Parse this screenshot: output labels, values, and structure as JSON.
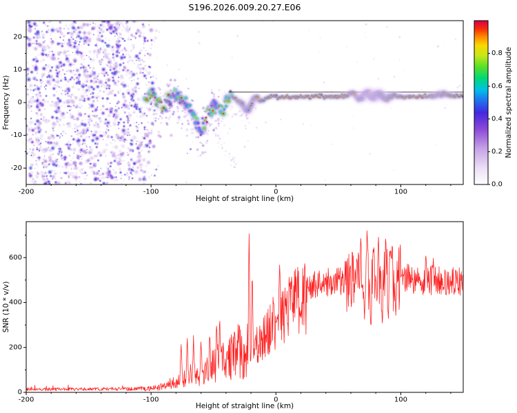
{
  "title": "S196.2026.009.20.27.E06",
  "chart_data": [
    {
      "type": "heatmap",
      "name": "doppler-spectrogram",
      "title": "S196.2026.009.20.27.E06",
      "xlabel": "Height of straight line (km)",
      "ylabel": "Frequency (Hz)",
      "xlim": [
        -200,
        150
      ],
      "ylim": [
        -25,
        25
      ],
      "xticks": [
        -200,
        -100,
        0,
        100
      ],
      "xtick_labels": [
        "-200",
        "-100",
        "0",
        "100"
      ],
      "xtick_minor_step": 20,
      "yticks": [
        -20,
        -10,
        0,
        10,
        20
      ],
      "ytick_labels": [
        "-20",
        "-10",
        "0",
        "10",
        "20"
      ],
      "ytick_minor_step": 5,
      "colorbar": {
        "label": "Normalized spectral amplitude",
        "range": [
          0,
          1
        ],
        "tick_values": [
          0,
          0.2,
          0.4,
          0.6,
          0.8
        ],
        "tick_labels": [
          "0.0",
          "0.2",
          "0.4",
          "0.6",
          "0.8"
        ],
        "stops": [
          [
            0.0,
            "#ffffff"
          ],
          [
            0.1,
            "#ece0f6"
          ],
          [
            0.22,
            "#c6a3e6"
          ],
          [
            0.34,
            "#8c48d8"
          ],
          [
            0.44,
            "#4428e0"
          ],
          [
            0.52,
            "#1e78f0"
          ],
          [
            0.58,
            "#00c0e8"
          ],
          [
            0.65,
            "#00d878"
          ],
          [
            0.72,
            "#58e028"
          ],
          [
            0.79,
            "#c8e818"
          ],
          [
            0.85,
            "#f8d800"
          ],
          [
            0.9,
            "#ff9000"
          ],
          [
            0.95,
            "#f83008"
          ],
          [
            1.0,
            "#d80048"
          ]
        ]
      },
      "noise_field": {
        "x_range": [
          -200,
          -93
        ],
        "fade_start": -110,
        "count": 1800,
        "amp_max": 0.45,
        "seed": 1234
      },
      "signal_trace": {
        "centerline": [
          [
            -105,
            1.5
          ],
          [
            -98,
            2
          ],
          [
            -92,
            0.5
          ],
          [
            -88,
            -0.5
          ],
          [
            -85,
            2
          ],
          [
            -80,
            2.5
          ],
          [
            -76,
            1
          ],
          [
            -72,
            0
          ],
          [
            -69,
            -2.5
          ],
          [
            -66,
            -4.5
          ],
          [
            -63,
            -7
          ],
          [
            -60,
            -9
          ],
          [
            -57,
            -6
          ],
          [
            -54,
            -3
          ],
          [
            -51,
            -0.5
          ],
          [
            -48,
            -1
          ],
          [
            -45,
            -3
          ],
          [
            -42,
            -1
          ],
          [
            -39,
            1
          ],
          [
            -36,
            2
          ],
          [
            -32,
            1
          ],
          [
            -28,
            0
          ],
          [
            -25,
            -1.5
          ],
          [
            -22,
            -2.5
          ],
          [
            -19,
            0
          ],
          [
            -16,
            2
          ],
          [
            -13,
            1
          ],
          [
            -10,
            0.5
          ],
          [
            -7,
            1.5
          ],
          [
            -4,
            2
          ],
          [
            0,
            1.8
          ],
          [
            10,
            1.6
          ],
          [
            20,
            1.8
          ],
          [
            30,
            2
          ],
          [
            40,
            1.8
          ],
          [
            50,
            1.7
          ],
          [
            55,
            2
          ],
          [
            62,
            3
          ],
          [
            66,
            1.2
          ],
          [
            70,
            1.8
          ],
          [
            73,
            3
          ],
          [
            78,
            1.5
          ],
          [
            83,
            2.6
          ],
          [
            88,
            1.2
          ],
          [
            95,
            2.2
          ],
          [
            100,
            1.8
          ],
          [
            110,
            1.7
          ],
          [
            120,
            1.9
          ],
          [
            130,
            2.3
          ],
          [
            135,
            2.6
          ],
          [
            140,
            2
          ],
          [
            150,
            2
          ]
        ],
        "cluster_x_range": [
          -105,
          -35
        ],
        "tight_x_range": [
          -35,
          150
        ],
        "peak_amplitude": 0.95
      },
      "reference_line": {
        "freq": 3.2,
        "x_range": [
          -38,
          150
        ],
        "color": "#202020"
      }
    },
    {
      "type": "line",
      "name": "snr-profile",
      "xlabel": "Height of straight line (km)",
      "ylabel": "SNR (10 * v/v)",
      "xlim": [
        -200,
        150
      ],
      "ylim": [
        0,
        760
      ],
      "xticks": [
        -200,
        -100,
        0,
        100
      ],
      "xtick_labels": [
        "-200",
        "-100",
        "0",
        "100"
      ],
      "xtick_minor_step": 20,
      "yticks": [
        0,
        200,
        400,
        600
      ],
      "ytick_labels": [
        "0",
        "200",
        "400",
        "600"
      ],
      "ytick_minor_step": 100,
      "color": "#ff2222",
      "seed": 77,
      "envelope": [
        [
          -200,
          14
        ],
        [
          -160,
          14
        ],
        [
          -130,
          15
        ],
        [
          -110,
          16
        ],
        [
          -100,
          20
        ],
        [
          -92,
          28
        ],
        [
          -85,
          45
        ],
        [
          -78,
          60
        ],
        [
          -72,
          85
        ],
        [
          -66,
          100
        ],
        [
          -60,
          95
        ],
        [
          -55,
          120
        ],
        [
          -50,
          140
        ],
        [
          -45,
          170
        ],
        [
          -40,
          150
        ],
        [
          -35,
          190
        ],
        [
          -30,
          220
        ],
        [
          -26,
          180
        ],
        [
          -22,
          240
        ],
        [
          -18,
          200
        ],
        [
          -14,
          240
        ],
        [
          -10,
          270
        ],
        [
          -6,
          300
        ],
        [
          -2,
          330
        ],
        [
          2,
          360
        ],
        [
          6,
          380
        ],
        [
          10,
          400
        ],
        [
          15,
          420
        ],
        [
          20,
          445
        ],
        [
          25,
          465
        ],
        [
          30,
          480
        ],
        [
          35,
          495
        ],
        [
          40,
          490
        ],
        [
          45,
          500
        ],
        [
          50,
          505
        ],
        [
          55,
          490
        ],
        [
          60,
          505
        ],
        [
          65,
          515
        ],
        [
          70,
          505
        ],
        [
          75,
          490
        ],
        [
          80,
          515
        ],
        [
          85,
          505
        ],
        [
          90,
          525
        ],
        [
          95,
          510
        ],
        [
          100,
          530
        ],
        [
          105,
          515
        ],
        [
          110,
          500
        ],
        [
          115,
          505
        ],
        [
          120,
          495
        ],
        [
          125,
          505
        ],
        [
          130,
          505
        ],
        [
          135,
          495
        ],
        [
          140,
          505
        ],
        [
          145,
          500
        ],
        [
          150,
          500
        ]
      ],
      "spikes": [
        [
          -76,
          230
        ],
        [
          -71,
          245
        ],
        [
          -66,
          258
        ],
        [
          -60,
          240
        ],
        [
          -53,
          262
        ],
        [
          -47.5,
          300
        ],
        [
          -45,
          335
        ],
        [
          -21.5,
          720
        ],
        [
          -19,
          560
        ],
        [
          3,
          585
        ],
        [
          68,
          695
        ],
        [
          73,
          738
        ],
        [
          78,
          688
        ],
        [
          82,
          726
        ],
        [
          88,
          698
        ],
        [
          93,
          655
        ],
        [
          120,
          620
        ],
        [
          126,
          600
        ]
      ],
      "dips": [
        [
          71,
          310
        ],
        [
          76,
          272
        ],
        [
          85,
          300
        ],
        [
          90,
          325
        ],
        [
          96,
          340
        ]
      ]
    }
  ]
}
